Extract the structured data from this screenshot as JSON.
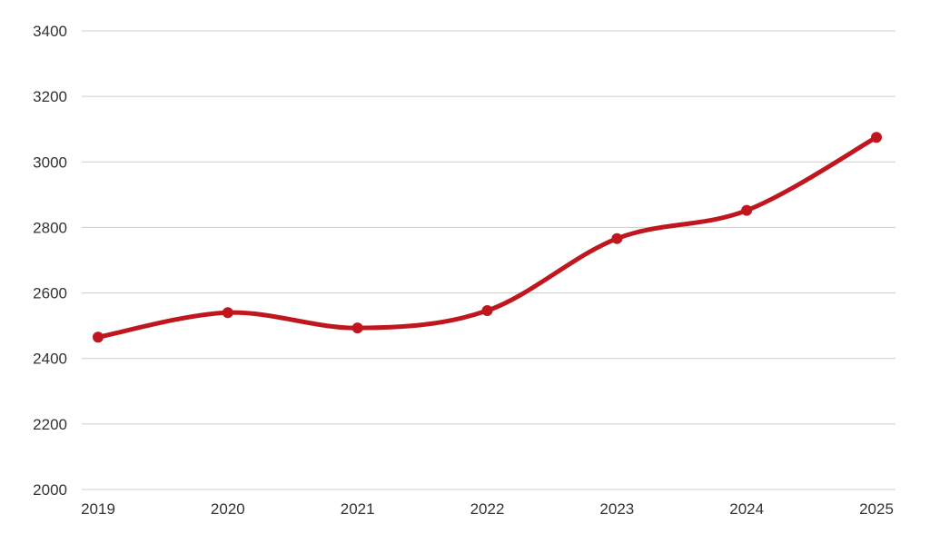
{
  "chart_data": {
    "type": "line",
    "title": "",
    "xlabel": "",
    "ylabel": "",
    "x": [
      "2019",
      "2020",
      "2021",
      "2022",
      "2023",
      "2024",
      "2025"
    ],
    "series": [
      {
        "values": [
          2465,
          2540,
          2493,
          2546,
          2766,
          2852,
          3075
        ]
      }
    ],
    "ylim": [
      2000,
      3400
    ],
    "yticks": [
      2000,
      2200,
      2400,
      2600,
      2800,
      3000,
      3200,
      3400
    ],
    "grid": true,
    "legend": "none",
    "smooth": true,
    "colors": {
      "line": "#c0161e",
      "grid": "#cccccc",
      "text": "#333333"
    }
  }
}
